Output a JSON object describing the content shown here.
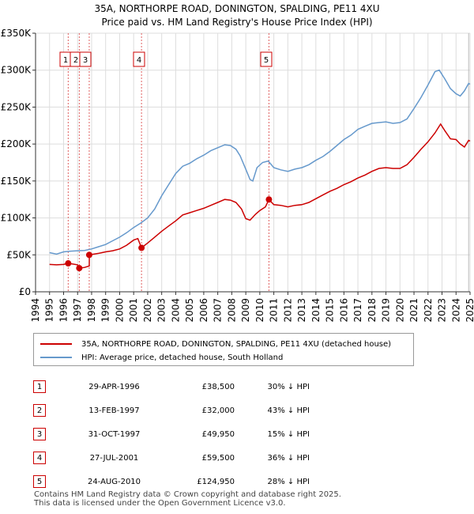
{
  "title_line1": "35A, NORTHORPE ROAD, DONINGTON, SPALDING, PE11 4XU",
  "title_line2": "Price paid vs. HM Land Registry's House Price Index (HPI)",
  "chart_data": {
    "type": "line",
    "xlim": [
      1994,
      2025
    ],
    "ylim": [
      0,
      350000
    ],
    "yticks": [
      0,
      50000,
      100000,
      150000,
      200000,
      250000,
      300000,
      350000
    ],
    "ytick_labels": [
      "£0",
      "£50K",
      "£100K",
      "£150K",
      "£200K",
      "£250K",
      "£300K",
      "£350K"
    ],
    "xticks": [
      1994,
      1995,
      1996,
      1997,
      1998,
      1999,
      2000,
      2001,
      2002,
      2003,
      2004,
      2005,
      2006,
      2007,
      2008,
      2009,
      2010,
      2011,
      2012,
      2013,
      2014,
      2015,
      2016,
      2017,
      2018,
      2019,
      2020,
      2021,
      2022,
      2023,
      2024,
      2025
    ],
    "grid": true,
    "series": [
      {
        "name": "35A, NORTHORPE ROAD, DONINGTON, SPALDING, PE11 4XU (detached house)",
        "color": "#cc0000",
        "points": [
          [
            1995.0,
            37000
          ],
          [
            1995.5,
            36500
          ],
          [
            1996.0,
            37000
          ],
          [
            1996.33,
            38500
          ],
          [
            1996.7,
            37500
          ],
          [
            1997.0,
            36500
          ],
          [
            1997.12,
            32000
          ],
          [
            1997.5,
            33000
          ],
          [
            1997.83,
            35000
          ],
          [
            1997.84,
            49950
          ],
          [
            1998.5,
            52000
          ],
          [
            1999.0,
            54000
          ],
          [
            1999.5,
            55500
          ],
          [
            2000.0,
            58000
          ],
          [
            2000.5,
            63000
          ],
          [
            2001.0,
            70000
          ],
          [
            2001.3,
            72000
          ],
          [
            2001.56,
            59500
          ],
          [
            2002.0,
            66000
          ],
          [
            2002.5,
            74000
          ],
          [
            2003.0,
            82000
          ],
          [
            2003.5,
            89000
          ],
          [
            2004.0,
            96000
          ],
          [
            2004.5,
            104000
          ],
          [
            2005.0,
            107000
          ],
          [
            2005.5,
            110000
          ],
          [
            2006.0,
            113000
          ],
          [
            2006.5,
            117000
          ],
          [
            2007.0,
            121000
          ],
          [
            2007.5,
            125000
          ],
          [
            2007.9,
            124000
          ],
          [
            2008.3,
            121000
          ],
          [
            2008.7,
            112000
          ],
          [
            2009.0,
            99000
          ],
          [
            2009.3,
            97000
          ],
          [
            2009.7,
            105000
          ],
          [
            2010.0,
            110000
          ],
          [
            2010.4,
            115000
          ],
          [
            2010.65,
            124950
          ],
          [
            2011.0,
            118000
          ],
          [
            2011.5,
            117000
          ],
          [
            2012.0,
            115000
          ],
          [
            2012.5,
            117000
          ],
          [
            2013.0,
            118000
          ],
          [
            2013.5,
            121000
          ],
          [
            2014.0,
            126000
          ],
          [
            2014.5,
            131000
          ],
          [
            2015.0,
            136000
          ],
          [
            2015.5,
            140000
          ],
          [
            2016.0,
            145000
          ],
          [
            2016.5,
            149000
          ],
          [
            2017.0,
            154000
          ],
          [
            2017.5,
            158000
          ],
          [
            2018.0,
            163000
          ],
          [
            2018.5,
            167000
          ],
          [
            2019.0,
            168000
          ],
          [
            2019.5,
            167000
          ],
          [
            2020.0,
            167000
          ],
          [
            2020.5,
            172000
          ],
          [
            2021.0,
            182000
          ],
          [
            2021.5,
            193000
          ],
          [
            2022.0,
            203000
          ],
          [
            2022.5,
            215000
          ],
          [
            2022.9,
            227000
          ],
          [
            2023.2,
            218000
          ],
          [
            2023.6,
            207000
          ],
          [
            2024.0,
            206000
          ],
          [
            2024.3,
            200000
          ],
          [
            2024.6,
            196000
          ],
          [
            2024.9,
            205000
          ],
          [
            2025.0,
            204000
          ]
        ]
      },
      {
        "name": "HPI: Average price, detached house, South Holland",
        "color": "#6699cc",
        "points": [
          [
            1995.0,
            53000
          ],
          [
            1995.5,
            51000
          ],
          [
            1996.0,
            54000
          ],
          [
            1996.5,
            55000
          ],
          [
            1997.0,
            55500
          ],
          [
            1997.5,
            56000
          ],
          [
            1998.0,
            58000
          ],
          [
            1998.5,
            61000
          ],
          [
            1999.0,
            64000
          ],
          [
            1999.5,
            69000
          ],
          [
            2000.0,
            74000
          ],
          [
            2000.5,
            80000
          ],
          [
            2001.0,
            87000
          ],
          [
            2001.5,
            93000
          ],
          [
            2002.0,
            100000
          ],
          [
            2002.5,
            112000
          ],
          [
            2003.0,
            130000
          ],
          [
            2003.5,
            145000
          ],
          [
            2004.0,
            160000
          ],
          [
            2004.5,
            170000
          ],
          [
            2005.0,
            174000
          ],
          [
            2005.5,
            180000
          ],
          [
            2006.0,
            185000
          ],
          [
            2006.5,
            191000
          ],
          [
            2007.0,
            195000
          ],
          [
            2007.5,
            199000
          ],
          [
            2007.9,
            198000
          ],
          [
            2008.3,
            193000
          ],
          [
            2008.6,
            184000
          ],
          [
            2009.0,
            166000
          ],
          [
            2009.3,
            152000
          ],
          [
            2009.5,
            150000
          ],
          [
            2009.8,
            168000
          ],
          [
            2010.2,
            175000
          ],
          [
            2010.6,
            177000
          ],
          [
            2011.0,
            168000
          ],
          [
            2011.5,
            165000
          ],
          [
            2012.0,
            163000
          ],
          [
            2012.5,
            166000
          ],
          [
            2013.0,
            168000
          ],
          [
            2013.5,
            172000
          ],
          [
            2014.0,
            178000
          ],
          [
            2014.5,
            183000
          ],
          [
            2015.0,
            190000
          ],
          [
            2015.5,
            198000
          ],
          [
            2016.0,
            206000
          ],
          [
            2016.5,
            212000
          ],
          [
            2017.0,
            220000
          ],
          [
            2017.5,
            224000
          ],
          [
            2018.0,
            228000
          ],
          [
            2018.5,
            229000
          ],
          [
            2019.0,
            230000
          ],
          [
            2019.5,
            228000
          ],
          [
            2020.0,
            229000
          ],
          [
            2020.5,
            234000
          ],
          [
            2021.0,
            248000
          ],
          [
            2021.5,
            263000
          ],
          [
            2022.0,
            280000
          ],
          [
            2022.5,
            298000
          ],
          [
            2022.8,
            300000
          ],
          [
            2023.2,
            288000
          ],
          [
            2023.6,
            275000
          ],
          [
            2024.0,
            268000
          ],
          [
            2024.3,
            265000
          ],
          [
            2024.6,
            272000
          ],
          [
            2024.9,
            282000
          ],
          [
            2025.0,
            281000
          ]
        ]
      }
    ],
    "sales": [
      {
        "n": "1",
        "x": 1996.33,
        "y": 38500
      },
      {
        "n": "2",
        "x": 1997.12,
        "y": 32000
      },
      {
        "n": "3",
        "x": 1997.83,
        "y": 49950
      },
      {
        "n": "4",
        "x": 2001.56,
        "y": 59500
      },
      {
        "n": "5",
        "x": 2010.65,
        "y": 124950
      }
    ]
  },
  "legend": {
    "red_label": "35A, NORTHORPE ROAD, DONINGTON, SPALDING, PE11 4XU (detached house)",
    "blue_label": "HPI: Average price, detached house, South Holland",
    "red_color": "#cc0000",
    "blue_color": "#6699cc"
  },
  "table": [
    {
      "n": "1",
      "date": "29-APR-1996",
      "price": "£38,500",
      "hpi": "30% ↓ HPI"
    },
    {
      "n": "2",
      "date": "13-FEB-1997",
      "price": "£32,000",
      "hpi": "43% ↓ HPI"
    },
    {
      "n": "3",
      "date": "31-OCT-1997",
      "price": "£49,950",
      "hpi": "15% ↓ HPI"
    },
    {
      "n": "4",
      "date": "27-JUL-2001",
      "price": "£59,500",
      "hpi": "36% ↓ HPI"
    },
    {
      "n": "5",
      "date": "24-AUG-2010",
      "price": "£124,950",
      "hpi": "28% ↓ HPI"
    }
  ],
  "footer_line1": "Contains HM Land Registry data © Crown copyright and database right 2025.",
  "footer_line2": "This data is licensed under the Open Government Licence v3.0."
}
